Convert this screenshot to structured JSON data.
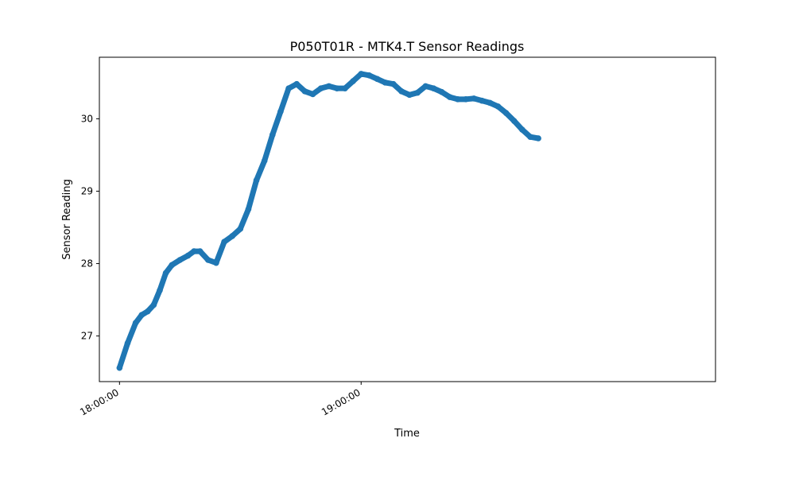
{
  "chart_data": {
    "type": "scatter",
    "title": "P050T01R - MTK4.T Sensor Readings",
    "xlabel": "Time",
    "ylabel": "Sensor Reading",
    "x_tick_labels": [
      "18:00:00",
      "19:00:00"
    ],
    "x_ticks": [
      "18:00:00",
      "19:00:00"
    ],
    "y_ticks": [
      27,
      28,
      29,
      30
    ],
    "y_tick_labels": [
      "27",
      "28",
      "29",
      "30"
    ],
    "xlim": [
      "17:55:00",
      "20:28:00"
    ],
    "ylim": [
      26.37,
      30.85
    ],
    "grid": false,
    "series": [
      {
        "color": "#1f77b4",
        "x": [
          "18:00:00",
          "18:02:00",
          "18:04:00",
          "18:05:30",
          "18:07:00",
          "18:08:30",
          "18:10:00",
          "18:11:30",
          "18:13:00",
          "18:15:00",
          "18:17:00",
          "18:18:30",
          "18:20:00",
          "18:22:00",
          "18:24:00",
          "18:26:00",
          "18:28:00",
          "18:30:00",
          "18:32:00",
          "18:34:00",
          "18:36:00",
          "18:38:00",
          "18:40:00",
          "18:42:00",
          "18:44:00",
          "18:46:00",
          "18:48:00",
          "18:50:00",
          "18:52:00",
          "18:54:00",
          "18:56:00",
          "18:58:00",
          "19:00:00",
          "19:02:00",
          "19:04:00",
          "19:06:00",
          "19:08:00",
          "19:10:00",
          "19:12:00",
          "19:14:00",
          "19:16:00",
          "19:18:00",
          "19:20:00",
          "19:22:00",
          "19:24:00",
          "19:26:00",
          "19:28:00",
          "19:30:00",
          "19:32:00",
          "19:34:00",
          "19:36:00",
          "19:38:00",
          "19:40:00",
          "19:42:00",
          "19:44:00"
        ],
        "y": [
          26.56,
          26.9,
          27.18,
          27.29,
          27.34,
          27.43,
          27.63,
          27.87,
          27.98,
          28.05,
          28.11,
          28.17,
          28.17,
          28.05,
          28.01,
          28.3,
          28.38,
          28.48,
          28.75,
          29.15,
          29.42,
          29.78,
          30.1,
          30.42,
          30.48,
          30.38,
          30.34,
          30.42,
          30.45,
          30.42,
          30.42,
          30.52,
          30.62,
          30.6,
          30.55,
          30.5,
          30.48,
          30.38,
          30.33,
          30.36,
          30.45,
          30.42,
          30.37,
          30.3,
          30.27,
          30.27,
          30.28,
          30.25,
          30.22,
          30.17,
          30.08,
          29.97,
          29.85,
          29.75,
          29.73
        ]
      }
    ]
  }
}
